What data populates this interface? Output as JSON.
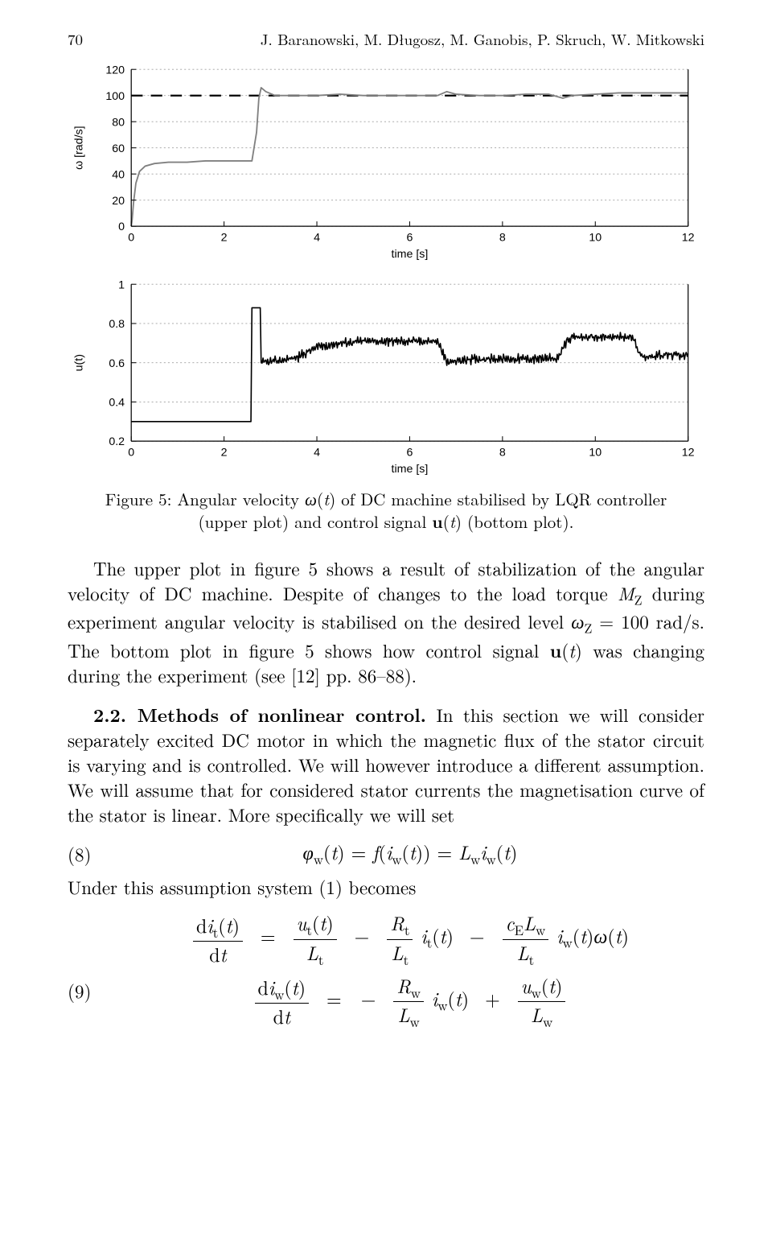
{
  "header": {
    "page_number": "70",
    "authors": "J. Baranowski, M. Długosz, M. Ganobis, P. Skruch, W. Mitkowski"
  },
  "chart_top": {
    "type": "line",
    "xlabel": "time [s]",
    "ylabel": "ω [rad/s]",
    "label_fontsize": 14,
    "tick_fontsize": 14,
    "xlim": [
      0,
      12
    ],
    "xtick_step": 2,
    "ylim": [
      0,
      120
    ],
    "ytick_step": 20,
    "background_color": "#ffffff",
    "grid_color": "#a0a0a0",
    "grid_dash": "2,3",
    "reference": {
      "y": 100,
      "color": "#000000",
      "dash": "14,10",
      "width": 2.2
    },
    "series_color": "#808080",
    "series_width": 1.8,
    "data": [
      [
        0.0,
        0
      ],
      [
        0.02,
        5
      ],
      [
        0.05,
        18
      ],
      [
        0.1,
        33
      ],
      [
        0.18,
        42
      ],
      [
        0.3,
        46
      ],
      [
        0.5,
        48
      ],
      [
        0.8,
        49
      ],
      [
        1.2,
        49
      ],
      [
        1.6,
        50
      ],
      [
        2.0,
        50
      ],
      [
        2.4,
        50
      ],
      [
        2.6,
        50
      ],
      [
        2.7,
        72
      ],
      [
        2.75,
        98
      ],
      [
        2.8,
        106
      ],
      [
        2.9,
        103
      ],
      [
        3.1,
        100
      ],
      [
        3.5,
        100
      ],
      [
        4.0,
        100
      ],
      [
        4.5,
        101
      ],
      [
        5.0,
        100
      ],
      [
        5.5,
        100
      ],
      [
        6.0,
        100
      ],
      [
        6.6,
        100
      ],
      [
        6.8,
        103
      ],
      [
        7.0,
        101
      ],
      [
        7.5,
        100
      ],
      [
        8.0,
        100
      ],
      [
        8.5,
        101
      ],
      [
        9.0,
        101
      ],
      [
        9.3,
        98
      ],
      [
        9.5,
        100
      ],
      [
        10.0,
        101
      ],
      [
        10.5,
        102
      ],
      [
        11.0,
        102
      ],
      [
        11.5,
        102
      ],
      [
        12.0,
        102
      ]
    ]
  },
  "chart_bottom": {
    "type": "line",
    "xlabel": "time [s]",
    "ylabel": "u(t)",
    "label_fontsize": 14,
    "tick_fontsize": 14,
    "xlim": [
      0,
      12
    ],
    "xtick_step": 2,
    "ylim": [
      0.2,
      1.0
    ],
    "ytick_step": 0.2,
    "background_color": "#ffffff",
    "grid_color": "#a0a0a0",
    "grid_dash": "2,3",
    "series_color": "#000000",
    "series_width": 1.6,
    "noise_amp": 0.025,
    "baseline": [
      [
        0.0,
        0.3
      ],
      [
        2.6,
        0.3
      ],
      [
        2.6,
        0.88
      ],
      [
        2.8,
        0.88
      ],
      [
        2.8,
        0.6
      ],
      [
        3.2,
        0.61
      ],
      [
        3.6,
        0.63
      ],
      [
        4.0,
        0.68
      ],
      [
        4.5,
        0.7
      ],
      [
        5.0,
        0.71
      ],
      [
        5.5,
        0.71
      ],
      [
        6.0,
        0.71
      ],
      [
        6.6,
        0.71
      ],
      [
        6.8,
        0.6
      ],
      [
        7.0,
        0.61
      ],
      [
        7.5,
        0.62
      ],
      [
        8.0,
        0.62
      ],
      [
        8.5,
        0.62
      ],
      [
        9.2,
        0.62
      ],
      [
        9.4,
        0.72
      ],
      [
        9.6,
        0.73
      ],
      [
        10.0,
        0.73
      ],
      [
        10.5,
        0.73
      ],
      [
        10.8,
        0.73
      ],
      [
        11.0,
        0.63
      ],
      [
        11.5,
        0.64
      ],
      [
        12.0,
        0.64
      ]
    ]
  },
  "caption": "Figure 5: Angular velocity ω(t) of DC machine stabilised by LQR controller (upper plot) and control signal u(t) (bottom plot).",
  "para1": "The upper plot in figure 5 shows a result of stabilization of the angular velocity of DC machine. Despite of changes to the load torque MZ during experiment angular velocity is stabilised on the desired level ωZ = 100 rad/s. The bottom plot in figure 5 shows how control signal u(t) was changing during the experiment (see [12] pp. 86–88).",
  "sec_heading": "2.2. Methods of nonlinear control.",
  "para2": " In this section we will consider separately excited DC motor in which the magnetic flux of the stator circuit is varying and is controlled. We will however introduce a different assumption. We will assume that for considered stator currents the magnetisation curve of the stator is linear. More specifically we will set",
  "eq8": {
    "num": "(8)",
    "tex": "φw(t) = f(iw(t)) = Lw iw(t)"
  },
  "para3": "Under this assumption system (1) becomes",
  "eq9": {
    "num": "(9)",
    "line1_tex": "dit(t)/dt = ut(t)/Lt − (Rt/Lt) it(t) − (cE Lw / Lt) iw(t) ω(t)",
    "line2_tex": "diw(t)/dt = − (Rw/Lw) iw(t) + uw(t)/Lw"
  }
}
